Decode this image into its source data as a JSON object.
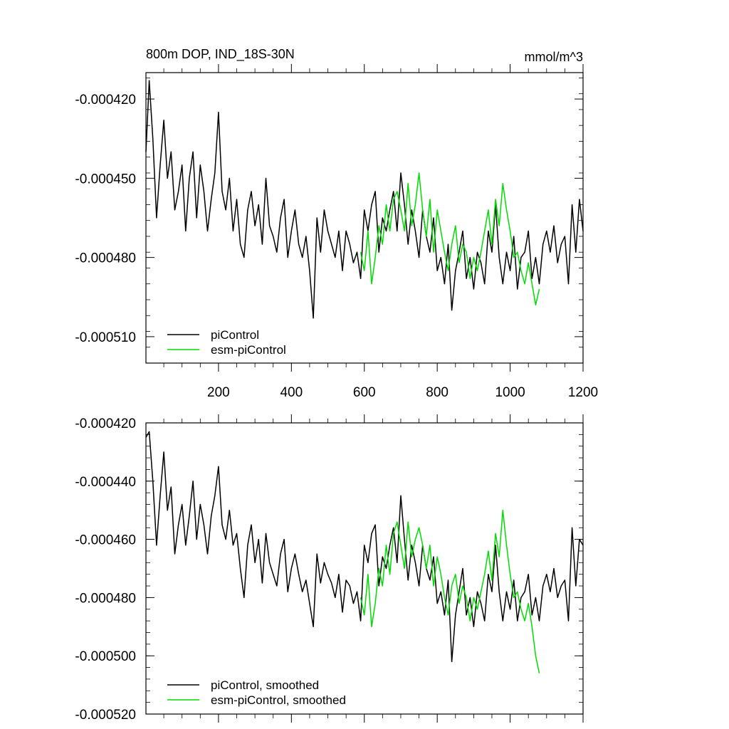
{
  "chart_data": [
    {
      "type": "line",
      "title": "800m DOP, IND_18S-30N",
      "units": "mmol/m^3",
      "xlim": [
        1,
        1200
      ],
      "ylim": [
        -0.00052,
        -0.00041
      ],
      "yticks": [
        -0.00042,
        -0.00045,
        -0.00048,
        -0.00051
      ],
      "ytick_labels": [
        "-0.000420",
        "-0.000450",
        "-0.000480",
        "-0.000510"
      ],
      "xticks": [
        200,
        400,
        600,
        800,
        1000,
        1200
      ],
      "xtick_labels": [
        "200",
        "400",
        "600",
        "800",
        "1000",
        "1200"
      ],
      "legend_position": "bottom-left",
      "series": [
        {
          "name": "piControl",
          "color": "#000000",
          "x": [
            1,
            10,
            20,
            30,
            40,
            50,
            60,
            70,
            80,
            90,
            100,
            110,
            120,
            130,
            140,
            150,
            160,
            170,
            180,
            190,
            200,
            210,
            220,
            230,
            240,
            250,
            260,
            270,
            280,
            290,
            300,
            310,
            320,
            330,
            340,
            350,
            360,
            370,
            380,
            390,
            400,
            410,
            420,
            430,
            440,
            450,
            460,
            470,
            480,
            490,
            500,
            510,
            520,
            530,
            540,
            550,
            560,
            570,
            580,
            590,
            600,
            610,
            620,
            630,
            640,
            650,
            660,
            670,
            680,
            690,
            700,
            710,
            720,
            730,
            740,
            750,
            760,
            770,
            780,
            790,
            800,
            810,
            820,
            830,
            840,
            850,
            860,
            870,
            880,
            890,
            900,
            910,
            920,
            930,
            940,
            950,
            960,
            970,
            980,
            990,
            1000,
            1010,
            1020,
            1030,
            1040,
            1050,
            1060,
            1070,
            1080,
            1090,
            1100,
            1110,
            1120,
            1130,
            1140,
            1150,
            1160,
            1170,
            1180,
            1190,
            1200
          ],
          "y": [
            -0.00044,
            -0.000413,
            -0.000435,
            -0.000465,
            -0.000445,
            -0.000428,
            -0.00045,
            -0.00044,
            -0.000462,
            -0.000455,
            -0.000445,
            -0.00047,
            -0.00045,
            -0.00044,
            -0.000465,
            -0.000445,
            -0.000455,
            -0.00047,
            -0.000458,
            -0.000448,
            -0.000425,
            -0.000455,
            -0.000462,
            -0.00045,
            -0.00047,
            -0.000458,
            -0.000475,
            -0.00048,
            -0.000462,
            -0.000455,
            -0.000468,
            -0.00046,
            -0.000475,
            -0.00045,
            -0.000468,
            -0.000472,
            -0.000478,
            -0.000465,
            -0.000458,
            -0.00048,
            -0.00047,
            -0.000462,
            -0.000475,
            -0.00048,
            -0.000472,
            -0.000485,
            -0.000503,
            -0.000465,
            -0.000478,
            -0.000462,
            -0.00047,
            -0.000475,
            -0.00048,
            -0.00047,
            -0.000485,
            -0.00047,
            -0.000475,
            -0.000482,
            -0.000478,
            -0.000488,
            -0.000462,
            -0.00047,
            -0.00046,
            -0.000455,
            -0.000478,
            -0.000465,
            -0.00047,
            -0.000462,
            -0.000455,
            -0.00047,
            -0.000448,
            -0.00046,
            -0.000475,
            -0.000462,
            -0.00047,
            -0.00048,
            -0.000462,
            -0.000472,
            -0.000478,
            -0.000465,
            -0.000485,
            -0.00048,
            -0.00049,
            -0.000475,
            -0.0005,
            -0.000485,
            -0.000478,
            -0.00047,
            -0.000488,
            -0.00048,
            -0.000492,
            -0.000478,
            -0.000482,
            -0.00049,
            -0.00047,
            -0.000478,
            -0.00046,
            -0.00048,
            -0.00049,
            -0.000478,
            -0.000485,
            -0.000472,
            -0.000492,
            -0.00048,
            -0.000478,
            -0.00047,
            -0.000488,
            -0.00048,
            -0.00049,
            -0.000475,
            -0.00047,
            -0.000478,
            -0.000468,
            -0.000482,
            -0.000475,
            -0.000472,
            -0.00049,
            -0.00046,
            -0.000478,
            -0.000458,
            -0.00047
          ]
        },
        {
          "name": "esm-piControl",
          "color": "#00dd00",
          "x": [
            590,
            600,
            610,
            620,
            630,
            640,
            650,
            660,
            670,
            680,
            690,
            700,
            710,
            720,
            730,
            740,
            750,
            760,
            770,
            780,
            790,
            800,
            810,
            820,
            830,
            840,
            850,
            860,
            870,
            880,
            890,
            900,
            910,
            920,
            930,
            940,
            950,
            960,
            970,
            980,
            990,
            1000,
            1010,
            1020,
            1030,
            1040,
            1050,
            1060,
            1070,
            1080
          ],
          "y": [
            -0.000478,
            -0.000485,
            -0.00047,
            -0.00049,
            -0.00048,
            -0.000468,
            -0.000475,
            -0.00046,
            -0.00047,
            -0.000458,
            -0.000455,
            -0.000462,
            -0.00047,
            -0.000452,
            -0.000468,
            -0.00046,
            -0.000448,
            -0.000462,
            -0.000472,
            -0.000458,
            -0.000478,
            -0.000462,
            -0.00047,
            -0.000478,
            -0.000485,
            -0.000475,
            -0.000468,
            -0.000482,
            -0.000475,
            -0.000478,
            -0.000488,
            -0.00048,
            -0.000485,
            -0.000478,
            -0.00047,
            -0.000462,
            -0.000475,
            -0.000458,
            -0.000468,
            -0.000452,
            -0.000462,
            -0.00047,
            -0.00048,
            -0.000478,
            -0.000485,
            -0.00049,
            -0.000482,
            -0.00049,
            -0.000498,
            -0.000492
          ]
        }
      ]
    },
    {
      "type": "line",
      "xlim": [
        1,
        1200
      ],
      "ylim": [
        -0.00052,
        -0.00042
      ],
      "yticks": [
        -0.00042,
        -0.00044,
        -0.00046,
        -0.00048,
        -0.0005,
        -0.00052
      ],
      "ytick_labels": [
        "-0.000420",
        "-0.000440",
        "-0.000460",
        "-0.000480",
        "-0.000500",
        "-0.000520"
      ],
      "xticks": [
        200,
        400,
        600,
        800,
        1000,
        1200
      ],
      "legend_position": "bottom-left",
      "series": [
        {
          "name": "piControl, smoothed",
          "color": "#000000",
          "x": [
            1,
            10,
            20,
            30,
            40,
            50,
            60,
            70,
            80,
            90,
            100,
            110,
            120,
            130,
            140,
            150,
            160,
            170,
            180,
            190,
            200,
            210,
            220,
            230,
            240,
            250,
            260,
            270,
            280,
            290,
            300,
            310,
            320,
            330,
            340,
            350,
            360,
            370,
            380,
            390,
            400,
            410,
            420,
            430,
            440,
            450,
            460,
            470,
            480,
            490,
            500,
            510,
            520,
            530,
            540,
            550,
            560,
            570,
            580,
            590,
            600,
            610,
            620,
            630,
            640,
            650,
            660,
            670,
            680,
            690,
            700,
            710,
            720,
            730,
            740,
            750,
            760,
            770,
            780,
            790,
            800,
            810,
            820,
            830,
            840,
            850,
            860,
            870,
            880,
            890,
            900,
            910,
            920,
            930,
            940,
            950,
            960,
            970,
            980,
            990,
            1000,
            1010,
            1020,
            1030,
            1040,
            1050,
            1060,
            1070,
            1080,
            1090,
            1100,
            1110,
            1120,
            1130,
            1140,
            1150,
            1160,
            1170,
            1180,
            1190,
            1200
          ],
          "y": [
            -0.000425,
            -0.000423,
            -0.00044,
            -0.000462,
            -0.000445,
            -0.00043,
            -0.00045,
            -0.000442,
            -0.000465,
            -0.000455,
            -0.000448,
            -0.000462,
            -0.000452,
            -0.00044,
            -0.00046,
            -0.000448,
            -0.000455,
            -0.000465,
            -0.000452,
            -0.000445,
            -0.000435,
            -0.000455,
            -0.00046,
            -0.00045,
            -0.000462,
            -0.000458,
            -0.00047,
            -0.00048,
            -0.000462,
            -0.000455,
            -0.000468,
            -0.00046,
            -0.000475,
            -0.000458,
            -0.000468,
            -0.000472,
            -0.000476,
            -0.000465,
            -0.00046,
            -0.000478,
            -0.00047,
            -0.000465,
            -0.000472,
            -0.000478,
            -0.000474,
            -0.000482,
            -0.00049,
            -0.000465,
            -0.000475,
            -0.000468,
            -0.000472,
            -0.000475,
            -0.00048,
            -0.000472,
            -0.000485,
            -0.000474,
            -0.000476,
            -0.000482,
            -0.000478,
            -0.000488,
            -0.000462,
            -0.000468,
            -0.000458,
            -0.000455,
            -0.000476,
            -0.000466,
            -0.00047,
            -0.000462,
            -0.000456,
            -0.000468,
            -0.000445,
            -0.00046,
            -0.000474,
            -0.000462,
            -0.000468,
            -0.000476,
            -0.000462,
            -0.00047,
            -0.000474,
            -0.000466,
            -0.000482,
            -0.000478,
            -0.000486,
            -0.000474,
            -0.000502,
            -0.000486,
            -0.000478,
            -0.00047,
            -0.000486,
            -0.00048,
            -0.00049,
            -0.000478,
            -0.000482,
            -0.000488,
            -0.000472,
            -0.000478,
            -0.000462,
            -0.000478,
            -0.000488,
            -0.000478,
            -0.000484,
            -0.000474,
            -0.000488,
            -0.00048,
            -0.000478,
            -0.000472,
            -0.000486,
            -0.00048,
            -0.000488,
            -0.000476,
            -0.000472,
            -0.000478,
            -0.00047,
            -0.00048,
            -0.000476,
            -0.000474,
            -0.000488,
            -0.000456,
            -0.000476,
            -0.00046,
            -0.000462
          ]
        },
        {
          "name": "esm-piControl, smoothed",
          "color": "#00dd00",
          "x": [
            590,
            600,
            610,
            620,
            630,
            640,
            650,
            660,
            670,
            680,
            690,
            700,
            710,
            720,
            730,
            740,
            750,
            760,
            770,
            780,
            790,
            800,
            810,
            820,
            830,
            840,
            850,
            860,
            870,
            880,
            890,
            900,
            910,
            920,
            930,
            940,
            950,
            960,
            970,
            980,
            990,
            1000,
            1010,
            1020,
            1030,
            1040,
            1050,
            1060,
            1070,
            1080
          ],
          "y": [
            -0.00048,
            -0.000486,
            -0.000472,
            -0.00049,
            -0.000482,
            -0.00047,
            -0.000476,
            -0.000462,
            -0.000472,
            -0.000458,
            -0.000454,
            -0.000462,
            -0.00047,
            -0.000454,
            -0.000466,
            -0.00046,
            -0.000456,
            -0.000462,
            -0.00047,
            -0.000462,
            -0.000476,
            -0.000466,
            -0.000472,
            -0.00048,
            -0.000486,
            -0.000476,
            -0.000472,
            -0.000482,
            -0.000476,
            -0.00048,
            -0.000488,
            -0.00048,
            -0.000484,
            -0.000478,
            -0.000472,
            -0.000464,
            -0.000474,
            -0.000458,
            -0.000466,
            -0.00045,
            -0.000462,
            -0.000472,
            -0.00048,
            -0.000478,
            -0.000484,
            -0.000488,
            -0.000482,
            -0.00049,
            -0.0005,
            -0.000506
          ]
        }
      ]
    }
  ]
}
